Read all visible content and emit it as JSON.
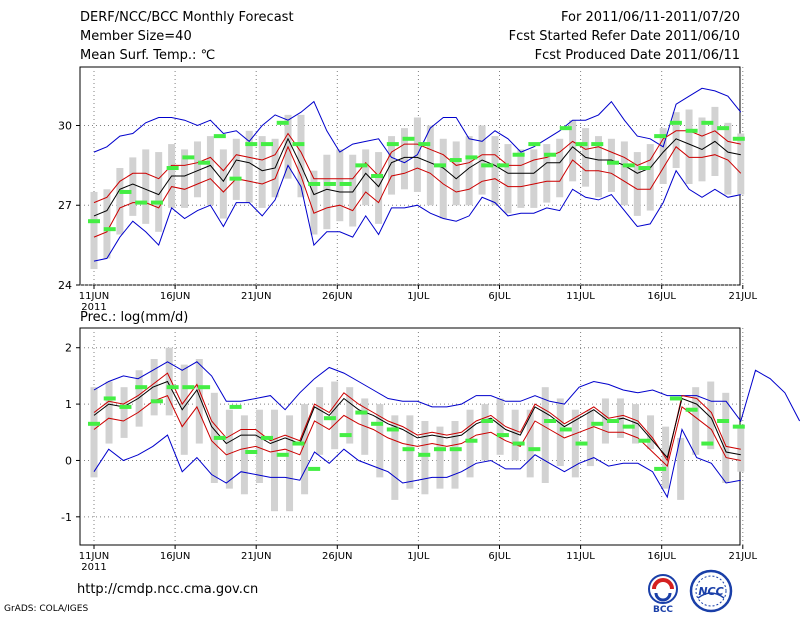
{
  "header": {
    "title": "DERF/NCC/BCC Monthly Forecast",
    "member_size": "Member Size=40",
    "variable": "Mean Surf. Temp.: ℃",
    "period": "For 2011/06/11-2011/07/20",
    "refer_date": "Fcst Started Refer Date 2011/06/10",
    "produced_date": "Fcst Produced Date 2011/06/11"
  },
  "footer": {
    "url": "http://cmdp.ncc.cma.gov.cn",
    "grads": "GrADS: COLA/IGES",
    "bcc_logo": "BCC",
    "ncc_logo": "NCC"
  },
  "colors": {
    "envelope": "#0000cc",
    "mean": "#000000",
    "spread": "#cc0000",
    "box": "#d2d2d2",
    "member": "#44ee44",
    "grid": "#808080"
  },
  "chart_data": [
    {
      "type": "box-ensemble",
      "name": "temperature",
      "title": "Mean Surf. Temp.: ℃",
      "x_tick_labels": [
        "11JUN",
        "16JUN",
        "21JUN",
        "26JUN",
        "1JUL",
        "6JUL",
        "11JUL",
        "16JUL",
        "21JUL"
      ],
      "x_year_label": "2011",
      "y_ticks": [
        24,
        27,
        30
      ],
      "ylim": [
        24,
        32.2
      ],
      "max": [
        29.0,
        29.2,
        29.6,
        29.7,
        30.1,
        30.3,
        30.3,
        30.2,
        30.0,
        30.2,
        29.7,
        29.8,
        29.4,
        30.0,
        30.4,
        30.2,
        30.5,
        30.9,
        29.8,
        29.0,
        29.3,
        29.4,
        29.5,
        28.8,
        28.6,
        28.9,
        29.9,
        30.3,
        30.3,
        29.5,
        29.4,
        29.8,
        29.5,
        29.0,
        29.2,
        29.5,
        29.8,
        30.2,
        30.2,
        30.4,
        30.9,
        30.2,
        29.6,
        29.5,
        29.2,
        30.8,
        31.1,
        31.4,
        31.3,
        31.1,
        30.5
      ],
      "p75": [
        27.1,
        27.3,
        27.9,
        28.2,
        28.2,
        28.0,
        28.5,
        28.5,
        28.6,
        28.8,
        28.3,
        28.9,
        28.8,
        28.7,
        28.9,
        29.7,
        29.0,
        28.0,
        28.0,
        28.0,
        28.0,
        28.6,
        28.1,
        29.0,
        29.3,
        29.3,
        29.1,
        28.9,
        28.5,
        28.6,
        28.9,
        28.9,
        28.5,
        28.5,
        28.7,
        28.8,
        29.0,
        29.4,
        29.1,
        29.2,
        29.0,
        28.8,
        28.5,
        28.7,
        29.5,
        29.8,
        29.8,
        29.6,
        29.8,
        29.4,
        29.3
      ],
      "mean": [
        26.6,
        26.8,
        27.6,
        27.8,
        27.6,
        27.4,
        28.1,
        28.1,
        28.3,
        28.5,
        27.9,
        28.7,
        28.6,
        28.3,
        28.4,
        29.5,
        28.5,
        27.4,
        27.6,
        27.5,
        27.5,
        28.2,
        27.7,
        28.6,
        28.8,
        28.8,
        28.6,
        28.4,
        28.0,
        28.4,
        28.7,
        28.5,
        28.2,
        28.2,
        28.2,
        28.6,
        28.6,
        29.2,
        28.8,
        28.7,
        28.7,
        28.5,
        28.2,
        28.4,
        29.0,
        29.5,
        29.3,
        29.1,
        29.4,
        29.0,
        28.9
      ],
      "p25": [
        25.8,
        26.0,
        26.9,
        27.1,
        27.1,
        26.9,
        27.7,
        27.6,
        27.8,
        28.0,
        27.5,
        28.0,
        27.9,
        27.8,
        28.0,
        29.2,
        28.1,
        26.7,
        26.9,
        27.0,
        26.8,
        27.5,
        27.1,
        28.1,
        28.2,
        28.4,
        28.2,
        27.8,
        27.5,
        27.6,
        27.9,
        28.0,
        27.7,
        27.7,
        27.8,
        27.9,
        27.9,
        28.7,
        28.3,
        28.3,
        28.2,
        27.9,
        27.6,
        27.6,
        28.4,
        29.2,
        28.8,
        28.8,
        28.9,
        28.7,
        28.2
      ],
      "min": [
        24.9,
        25.0,
        25.8,
        26.4,
        26.0,
        25.5,
        26.9,
        26.5,
        26.8,
        27.0,
        26.2,
        27.1,
        27.1,
        26.6,
        27.2,
        28.5,
        27.7,
        25.5,
        26.0,
        26.0,
        25.8,
        26.6,
        25.9,
        26.9,
        26.9,
        27.0,
        26.7,
        26.5,
        26.4,
        26.6,
        27.3,
        27.1,
        26.6,
        26.7,
        26.7,
        26.9,
        26.8,
        27.6,
        27.3,
        27.2,
        27.4,
        26.8,
        26.2,
        26.3,
        27.1,
        28.3,
        27.6,
        27.3,
        27.6,
        27.3,
        27.4
      ],
      "box_low": [
        24.6,
        25.0,
        25.9,
        26.6,
        26.3,
        26.0,
        26.9,
        26.9,
        27.3,
        27.0,
        26.5,
        27.2,
        27.1,
        26.9,
        27.3,
        28.0,
        27.3,
        25.9,
        26.1,
        26.4,
        26.2,
        27.0,
        26.3,
        27.4,
        27.6,
        27.5,
        27.0,
        26.5,
        27.0,
        27.0,
        27.4,
        27.0,
        26.7,
        26.9,
        26.9,
        27.1,
        27.3,
        27.9,
        27.7,
        27.3,
        27.5,
        27.0,
        26.6,
        26.8,
        27.8,
        28.4,
        27.8,
        27.9,
        28.1,
        27.4,
        27.4
      ],
      "box_high": [
        27.5,
        27.6,
        28.4,
        28.8,
        29.1,
        29.0,
        29.3,
        29.1,
        29.4,
        29.6,
        29.1,
        29.5,
        29.8,
        29.6,
        29.5,
        30.4,
        30.4,
        28.3,
        28.9,
        29.1,
        28.9,
        29.1,
        29.0,
        29.6,
        29.9,
        30.3,
        30.0,
        29.5,
        29.4,
        29.6,
        30.0,
        29.6,
        29.3,
        29.1,
        29.1,
        29.3,
        29.5,
        30.2,
        29.9,
        29.6,
        29.5,
        29.4,
        29.0,
        29.3,
        29.9,
        30.5,
        30.6,
        30.3,
        30.7,
        30.1,
        29.7
      ],
      "member_marks": [
        [
          26.4,
          26.1
        ],
        [
          27.5,
          27.1
        ],
        [
          27.1,
          28.4
        ],
        [
          28.8,
          28.6
        ],
        [
          29.6,
          28.0
        ],
        [
          29.3,
          29.3
        ],
        [
          30.1,
          29.3
        ],
        [
          27.8,
          27.8
        ],
        [
          27.8,
          28.5
        ],
        [
          28.1,
          29.3
        ],
        [
          29.5,
          29.3
        ],
        [
          28.5,
          28.7
        ],
        [
          28.8,
          28.5
        ],
        [
          28.5,
          28.9
        ],
        [
          29.3,
          28.9
        ],
        [
          29.9,
          29.3
        ],
        [
          29.3,
          28.6
        ],
        [
          28.5,
          28.4
        ],
        [
          29.6,
          30.1
        ],
        [
          29.8,
          30.1
        ],
        [
          29.9,
          29.5
        ]
      ]
    },
    {
      "type": "box-ensemble",
      "name": "precipitation",
      "title": "Prec.: log(mm/d)",
      "x_tick_labels": [
        "11JUN",
        "16JUN",
        "21JUN",
        "26JUN",
        "1JUL",
        "6JUL",
        "11JUL",
        "16JUL",
        "21JUL"
      ],
      "x_year_label": "2011",
      "y_ticks": [
        -1,
        0,
        1,
        2
      ],
      "ylim": [
        -1.5,
        2.35
      ],
      "max": [
        1.25,
        1.4,
        1.5,
        1.45,
        1.6,
        1.75,
        1.6,
        1.75,
        1.5,
        1.05,
        1.05,
        1.1,
        1.15,
        0.9,
        1.2,
        1.45,
        1.65,
        1.55,
        1.4,
        1.25,
        1.1,
        1.05,
        1.05,
        0.95,
        0.95,
        1.0,
        1.15,
        1.15,
        1.05,
        1.05,
        1.15,
        1.05,
        1.0,
        1.3,
        1.4,
        1.35,
        1.25,
        1.2,
        1.25,
        1.15,
        1.15,
        1.15,
        1.05,
        1.05,
        0.7,
        1.6,
        1.45,
        1.2,
        0.7
      ],
      "p75": [
        0.85,
        1.05,
        1.0,
        1.15,
        1.35,
        1.55,
        1.0,
        1.35,
        0.7,
        0.4,
        0.55,
        0.55,
        0.35,
        0.45,
        0.35,
        1.0,
        0.85,
        1.2,
        1.0,
        0.85,
        0.7,
        0.6,
        0.45,
        0.5,
        0.45,
        0.5,
        0.7,
        0.8,
        0.6,
        0.5,
        1.0,
        0.85,
        0.65,
        0.8,
        0.95,
        0.75,
        0.8,
        0.7,
        0.4,
        0.0,
        1.15,
        1.1,
        0.85,
        0.25,
        0.2
      ],
      "mean": [
        0.8,
        1.0,
        0.95,
        1.1,
        1.3,
        1.4,
        0.9,
        1.25,
        0.6,
        0.3,
        0.45,
        0.45,
        0.3,
        0.4,
        0.3,
        0.95,
        0.8,
        1.1,
        0.9,
        0.8,
        0.65,
        0.55,
        0.4,
        0.45,
        0.4,
        0.45,
        0.65,
        0.75,
        0.55,
        0.45,
        0.95,
        0.8,
        0.6,
        0.75,
        0.9,
        0.7,
        0.75,
        0.65,
        0.35,
        0.05,
        1.1,
        1.0,
        0.75,
        0.15,
        0.1
      ],
      "p25": [
        0.55,
        0.75,
        0.7,
        0.85,
        1.05,
        1.15,
        0.6,
        0.95,
        0.35,
        0.1,
        0.2,
        0.25,
        0.15,
        0.2,
        0.1,
        0.7,
        0.55,
        0.8,
        0.65,
        0.55,
        0.4,
        0.3,
        0.25,
        0.3,
        0.25,
        0.3,
        0.45,
        0.5,
        0.35,
        0.25,
        0.7,
        0.55,
        0.4,
        0.5,
        0.6,
        0.5,
        0.5,
        0.4,
        0.15,
        -0.1,
        0.95,
        0.75,
        0.55,
        0.05,
        0.0
      ],
      "min": [
        -0.2,
        0.2,
        0.0,
        0.1,
        0.25,
        0.45,
        -0.2,
        0.05,
        -0.25,
        -0.4,
        -0.2,
        -0.25,
        -0.3,
        -0.3,
        -0.35,
        0.15,
        -0.05,
        0.2,
        0.0,
        -0.1,
        -0.2,
        -0.4,
        -0.35,
        -0.3,
        -0.3,
        -0.2,
        -0.05,
        0.0,
        -0.15,
        -0.15,
        0.1,
        -0.05,
        -0.2,
        -0.05,
        0.05,
        -0.1,
        -0.05,
        -0.05,
        -0.2,
        -0.65,
        0.55,
        0.05,
        -0.05,
        -0.4,
        -0.35
      ],
      "box_low": [
        -0.3,
        0.3,
        0.4,
        0.6,
        0.8,
        0.8,
        0.1,
        0.3,
        -0.4,
        -0.5,
        -0.6,
        -0.4,
        -0.9,
        -0.9,
        -0.6,
        0.1,
        0.2,
        0.3,
        0.1,
        -0.3,
        -0.7,
        -0.5,
        -0.6,
        -0.5,
        -0.5,
        -0.3,
        0.0,
        0.1,
        0.0,
        -0.3,
        -0.4,
        -0.1,
        -0.3,
        -0.1,
        0.3,
        0.4,
        0.3,
        0.2,
        -0.5,
        -0.7,
        0.1,
        0.2,
        -0.4,
        -0.2
      ],
      "box_high": [
        1.3,
        1.4,
        1.3,
        1.6,
        1.8,
        2.0,
        1.7,
        1.8,
        1.2,
        0.9,
        0.8,
        0.9,
        0.9,
        0.8,
        1.0,
        1.3,
        1.4,
        1.3,
        1.1,
        1.0,
        0.8,
        0.8,
        0.7,
        0.6,
        0.7,
        0.9,
        1.0,
        1.1,
        0.9,
        0.9,
        1.3,
        1.1,
        0.9,
        0.9,
        1.1,
        1.1,
        1.0,
        0.8,
        0.6,
        0.4,
        1.3,
        1.4,
        1.2,
        0.6
      ],
      "member_marks": [
        [
          0.65,
          1.1
        ],
        [
          0.95,
          1.3
        ],
        [
          1.05,
          1.3
        ],
        [
          1.3,
          1.3
        ],
        [
          0.4,
          0.95
        ],
        [
          0.15,
          0.4
        ],
        [
          0.1,
          0.3
        ],
        [
          -0.15,
          0.75
        ],
        [
          0.45,
          0.85
        ],
        [
          0.65,
          0.55
        ],
        [
          0.2,
          0.1
        ],
        [
          0.2,
          0.2
        ],
        [
          0.35,
          0.7
        ],
        [
          0.45,
          0.3
        ],
        [
          0.2,
          0.7
        ],
        [
          0.55,
          0.3
        ],
        [
          0.65,
          0.7
        ],
        [
          0.6,
          0.35
        ],
        [
          -0.15,
          1.1
        ],
        [
          0.9,
          0.3
        ],
        [
          0.7,
          0.6
        ]
      ]
    }
  ]
}
